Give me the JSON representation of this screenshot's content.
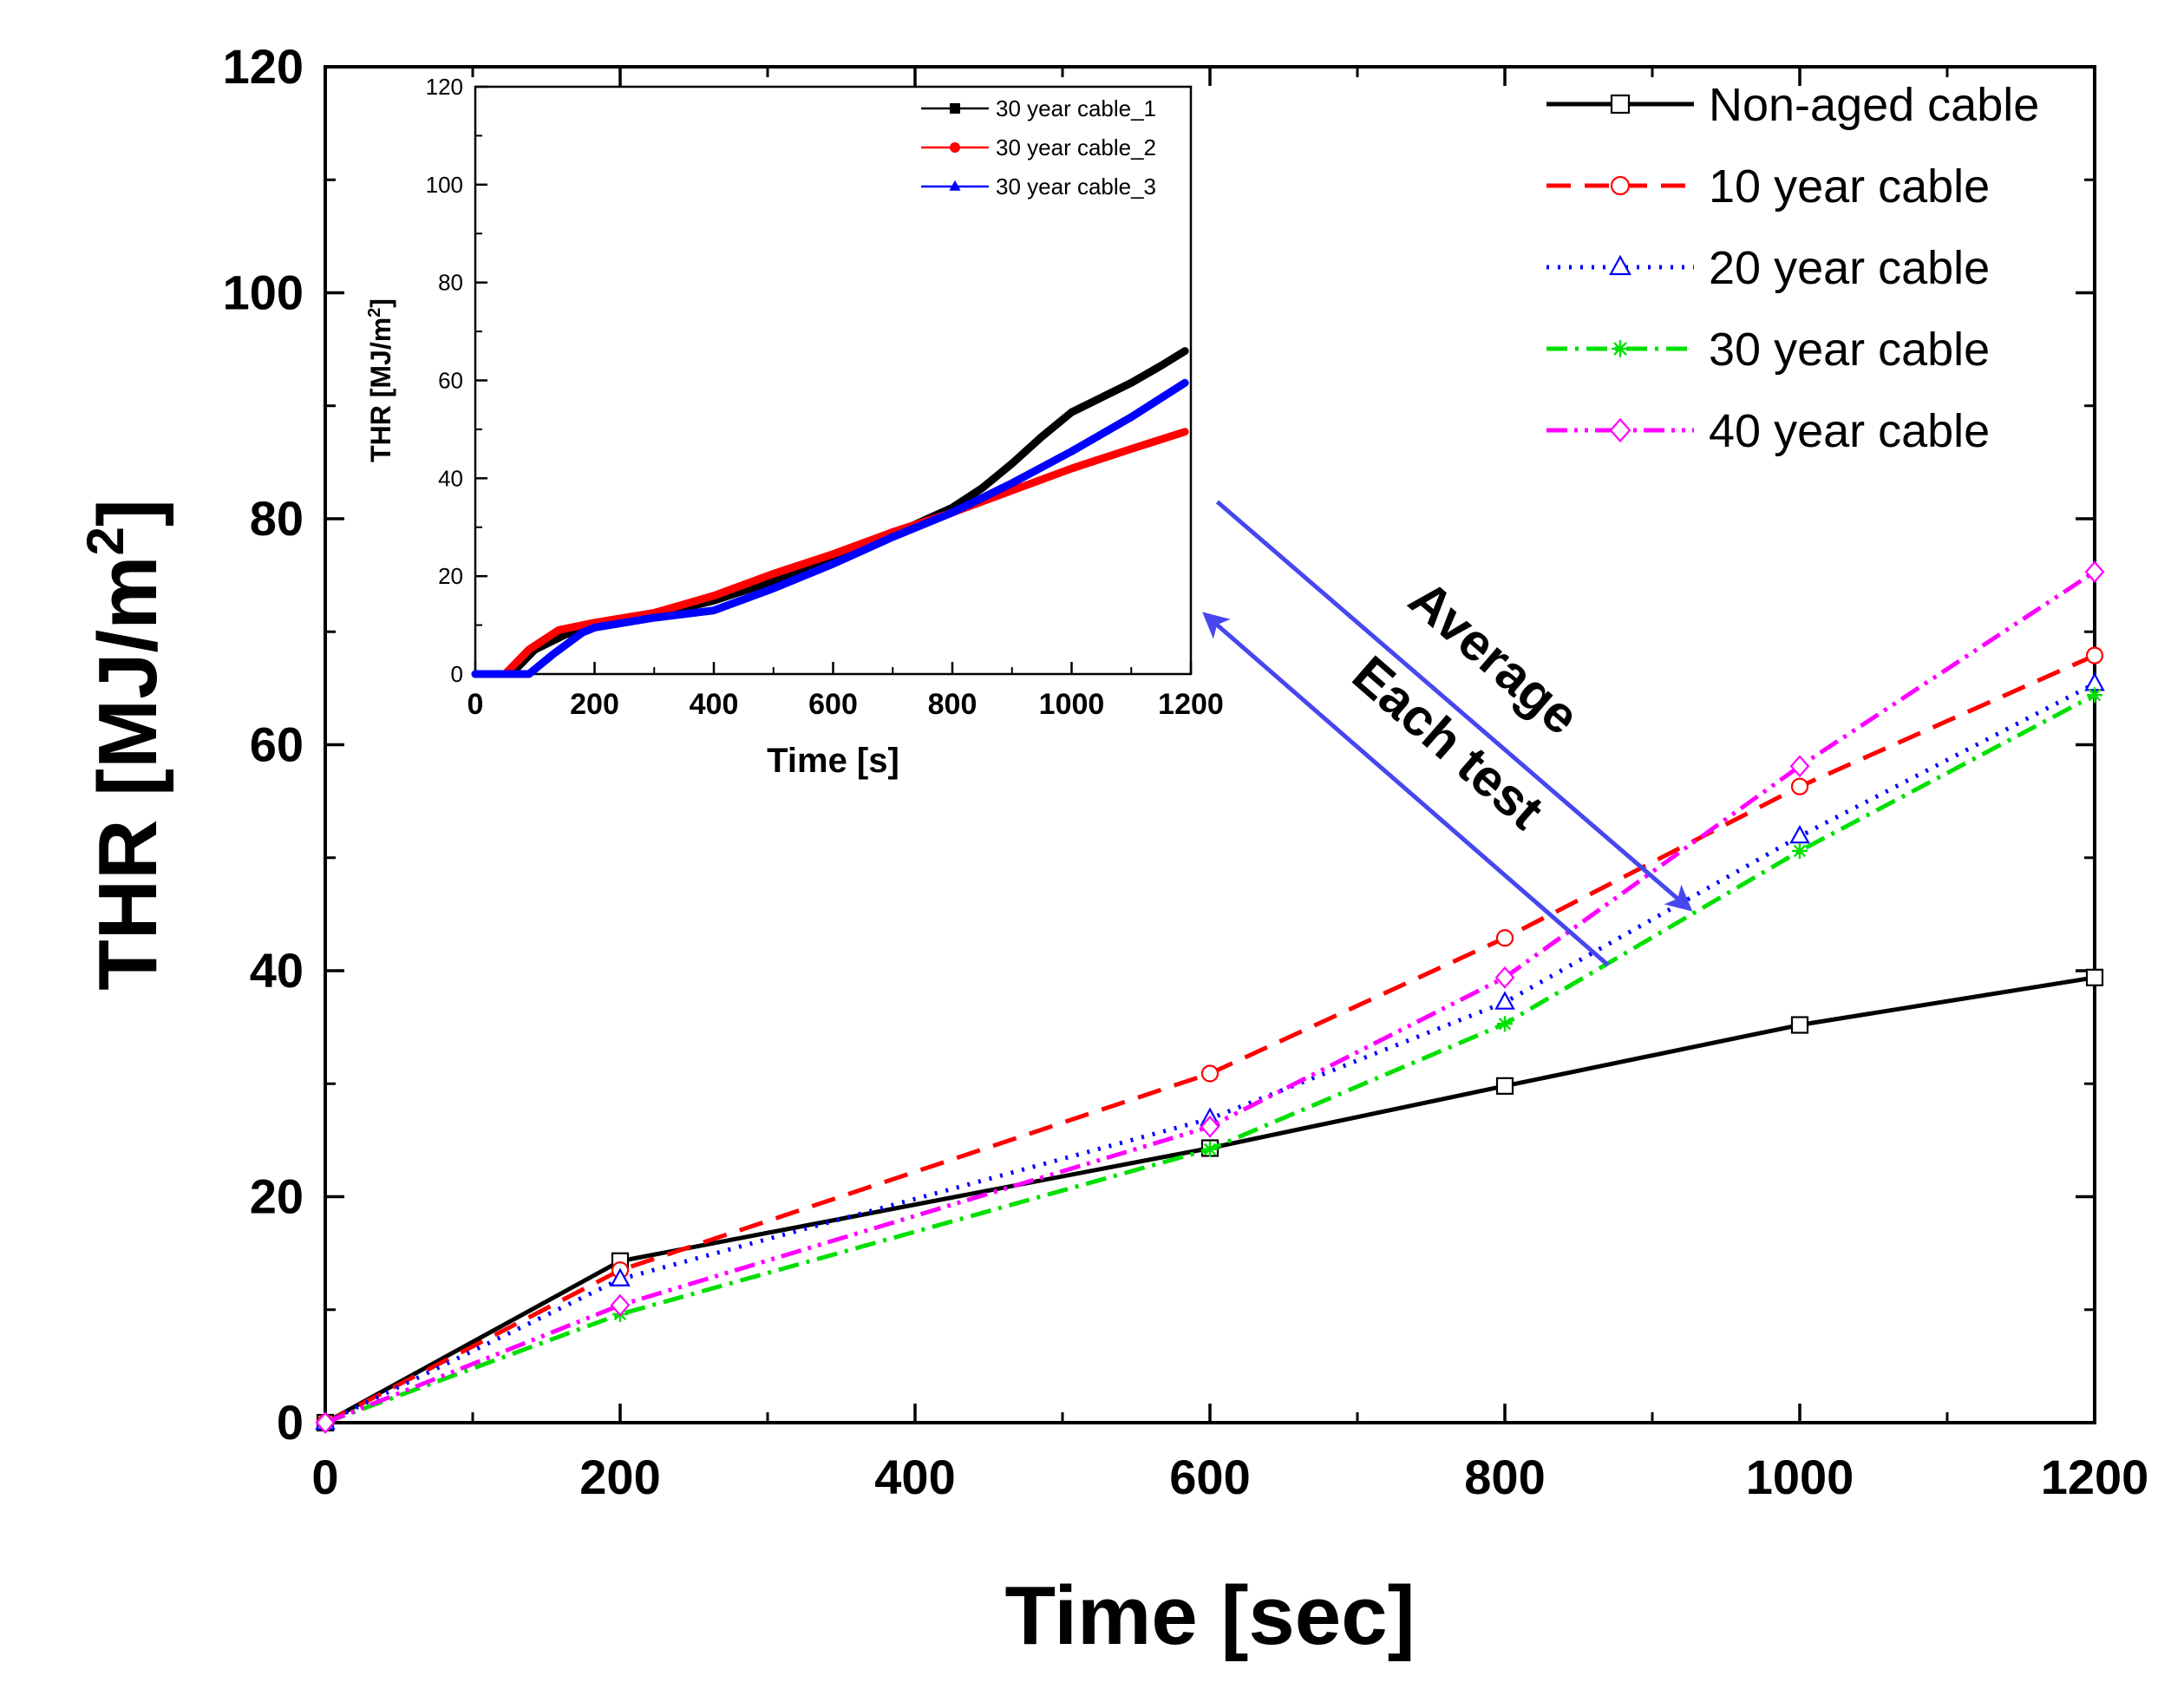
{
  "chart_data": [
    {
      "type": "line",
      "xlabel": "Time [sec]",
      "ylabel": "THR [MJ/m",
      "ylabel_sup": "2",
      "ylabel_end": "]",
      "xlim": [
        0,
        1200
      ],
      "ylim": [
        0,
        120
      ],
      "xticks": [
        0,
        200,
        400,
        600,
        800,
        1000,
        1200
      ],
      "yticks": [
        0,
        20,
        40,
        60,
        80,
        100,
        120
      ],
      "grid": false,
      "legend_position": "top-right",
      "series": [
        {
          "name": "Non-aged cable",
          "color": "#000000",
          "dash": "",
          "marker": "square",
          "x": [
            0,
            200,
            600,
            800,
            1000,
            1200
          ],
          "y": [
            0,
            14.3,
            24.3,
            29.8,
            35.2,
            39.4
          ]
        },
        {
          "name": "10 year cable",
          "color": "#ff0000",
          "dash": "28,16",
          "marker": "circle",
          "x": [
            0,
            200,
            600,
            800,
            1000,
            1200
          ],
          "y": [
            0,
            13.5,
            30.9,
            42.9,
            56.3,
            67.9
          ]
        },
        {
          "name": "20 year cable",
          "color": "#0000ff",
          "dash": "3,10",
          "marker": "triangle",
          "x": [
            0,
            200,
            600,
            800,
            1000,
            1200
          ],
          "y": [
            0,
            12.7,
            26.9,
            37.2,
            51.9,
            65.4
          ]
        },
        {
          "name": "30 year cable",
          "color": "#00e000",
          "dash": "24,9,4,9",
          "marker": "star",
          "x": [
            0,
            200,
            600,
            800,
            1000,
            1200
          ],
          "y": [
            0,
            9.6,
            24.2,
            35.3,
            50.6,
            64.4
          ]
        },
        {
          "name": "40 year cable",
          "color": "#ff00ff",
          "dash": "24,8,4,8,4,8",
          "marker": "diamond",
          "x": [
            0,
            200,
            600,
            800,
            1000,
            1200
          ],
          "y": [
            0,
            10.4,
            26.2,
            39.4,
            58.1,
            75.3
          ]
        }
      ],
      "annotations": [
        {
          "text": "Average",
          "from": [
            605,
            81.5
          ],
          "to": [
            925,
            45.5
          ]
        },
        {
          "text": "Each test",
          "from": [
            870,
            40.5
          ],
          "to": [
            597,
            71.5
          ]
        }
      ]
    },
    {
      "type": "line",
      "placement": "inset-top-left",
      "xlabel": "Time [s]",
      "ylabel": "THR [MJ/m",
      "ylabel_sup": "2",
      "ylabel_end": "]",
      "xlim": [
        0,
        1200
      ],
      "ylim": [
        0,
        120
      ],
      "xticks": [
        0,
        200,
        400,
        600,
        800,
        1000,
        1200
      ],
      "yticks": [
        0,
        20,
        40,
        60,
        80,
        100,
        120
      ],
      "legend_position": "top-right",
      "series": [
        {
          "name": "30 year cable_1",
          "color": "#000000",
          "marker": "square",
          "x": [
            0,
            60,
            100,
            150,
            200,
            300,
            400,
            500,
            600,
            700,
            800,
            850,
            900,
            950,
            1000,
            1050,
            1100,
            1150,
            1190
          ],
          "y": [
            0,
            0,
            5,
            8,
            10,
            12,
            15,
            19,
            23.5,
            28.5,
            34,
            38,
            43,
            48.5,
            53.5,
            56.5,
            59.5,
            63,
            66
          ]
        },
        {
          "name": "30 year cable_2",
          "color": "#ff0000",
          "marker": "circle",
          "x": [
            0,
            50,
            90,
            140,
            200,
            300,
            400,
            500,
            600,
            700,
            800,
            900,
            1000,
            1100,
            1190
          ],
          "y": [
            0,
            0,
            5,
            9,
            10.5,
            12.5,
            16,
            20.5,
            24.5,
            29,
            33,
            37.5,
            42,
            46,
            49.5
          ]
        },
        {
          "name": "30 year cable_3",
          "color": "#0000ff",
          "marker": "triangle",
          "x": [
            0,
            90,
            130,
            180,
            200,
            300,
            400,
            500,
            600,
            700,
            800,
            900,
            1000,
            1100,
            1190
          ],
          "y": [
            0,
            0,
            4,
            8.5,
            9.5,
            11.5,
            13,
            17.5,
            22.5,
            28,
            33,
            39,
            45.5,
            52.5,
            59.5
          ]
        }
      ]
    }
  ]
}
